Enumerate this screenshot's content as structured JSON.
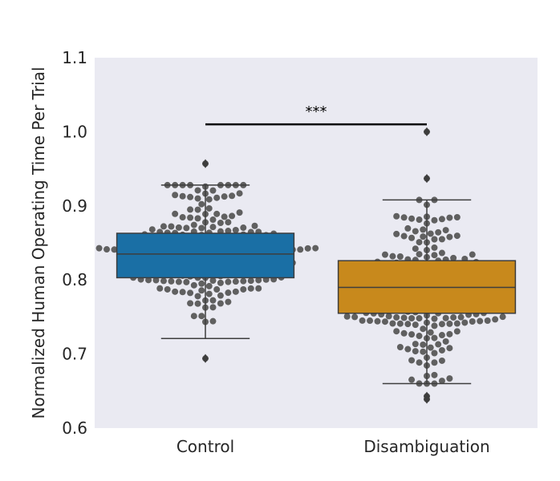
{
  "chart_data": {
    "type": "box",
    "ylabel": "Normalized Human Operating Time Per Trial",
    "xlabel": "",
    "ylim": [
      0.6,
      1.1
    ],
    "yticks": [
      "0.6",
      "0.7",
      "0.8",
      "0.9",
      "1.0",
      "1.1"
    ],
    "grid": false,
    "categories": [
      "Control",
      "Disambiguation"
    ],
    "boxes": [
      {
        "category": "Control",
        "color": "#1a6fa5",
        "q1": 0.803,
        "median": 0.835,
        "q3": 0.863,
        "whisker_low": 0.721,
        "whisker_high": 0.928,
        "outliers": [
          0.957,
          0.694
        ]
      },
      {
        "category": "Disambiguation",
        "color": "#c8891c",
        "q1": 0.755,
        "median": 0.79,
        "q3": 0.826,
        "whisker_low": 0.66,
        "whisker_high": 0.908,
        "outliers": [
          1.0,
          0.937,
          0.643,
          0.639
        ]
      }
    ],
    "significance": {
      "label": "***",
      "from": "Control",
      "to": "Disambiguation",
      "y": 1.01
    },
    "swarm_color": "#606060"
  }
}
